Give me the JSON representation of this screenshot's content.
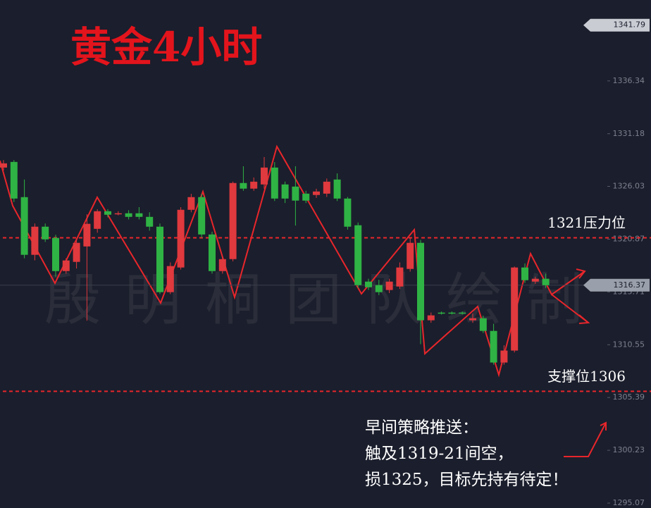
{
  "chart_data": {
    "type": "candlestick",
    "title": "黄金4小时",
    "watermark": "殷明桐团队绘制",
    "up_color": "#e0393e",
    "down_color": "#2fb344",
    "open": [
      1327.87,
      1328.42,
      1324.98,
      1319.34,
      1322.09,
      1320.99,
      1317.75,
      1318.65,
      1320.16,
      1321.88,
      1323.6,
      1323.4,
      1323.4,
      1323.4,
      1323.05,
      1322.09,
      1315.69,
      1318.1,
      1323.74,
      1324.98,
      1321.33,
      1317.75,
      1318.92,
      1326.36,
      1325.81,
      1326.22,
      1327.87,
      1326.22,
      1326.01,
      1325.32,
      1325.19,
      1325.32,
      1326.7,
      1324.84,
      1322.23,
      1316.72,
      1316.38,
      1315.9,
      1316.24,
      1317.96,
      1320.51,
      1312.94,
      1313.69,
      1313.69,
      1313.69,
      1312.94,
      1313.14,
      1311.9,
      1308.81,
      1309.98,
      1318.1,
      1316.72,
      1317.0
    ],
    "high": [
      1328.6,
      1328.6,
      1326.7,
      1322.4,
      1322.4,
      1321.3,
      1319.0,
      1320.8,
      1323.3,
      1323.8,
      1323.8,
      1323.6,
      1323.7,
      1324.0,
      1323.5,
      1322.4,
      1318.6,
      1324.0,
      1325.3,
      1325.3,
      1321.6,
      1319.2,
      1326.5,
      1328.0,
      1326.9,
      1328.9,
      1328.4,
      1326.5,
      1328.0,
      1325.6,
      1325.8,
      1326.8,
      1327.3,
      1325.0,
      1322.5,
      1317.0,
      1316.9,
      1317.0,
      1318.6,
      1321.0,
      1320.8,
      1313.7,
      1313.8,
      1313.8,
      1313.8,
      1313.6,
      1313.4,
      1312.6,
      1310.5,
      1318.2,
      1318.5,
      1317.2,
      1317.5
    ],
    "low": [
      1327.6,
      1324.5,
      1319.0,
      1318.8,
      1320.6,
      1317.2,
      1317.5,
      1318.0,
      1312.9,
      1321.5,
      1323.0,
      1323.2,
      1322.8,
      1322.8,
      1321.7,
      1315.5,
      1315.5,
      1317.9,
      1323.5,
      1321.0,
      1317.5,
      1317.5,
      1318.7,
      1325.6,
      1325.6,
      1325.8,
      1324.6,
      1324.4,
      1322.2,
      1324.4,
      1324.9,
      1325.0,
      1324.6,
      1321.8,
      1316.1,
      1315.9,
      1315.4,
      1315.6,
      1316.0,
      1317.7,
      1310.6,
      1312.7,
      1313.5,
      1313.5,
      1313.5,
      1312.7,
      1311.7,
      1308.6,
      1308.6,
      1309.8,
      1316.6,
      1316.5,
      1316.1
    ],
    "close": [
      1328.28,
      1324.84,
      1319.34,
      1322.09,
      1320.85,
      1317.75,
      1318.79,
      1320.51,
      1322.37,
      1323.6,
      1323.26,
      1323.4,
      1323.05,
      1323.05,
      1322.09,
      1315.69,
      1318.24,
      1323.74,
      1324.98,
      1321.33,
      1317.75,
      1318.92,
      1326.36,
      1325.81,
      1326.49,
      1327.87,
      1324.84,
      1324.84,
      1324.64,
      1324.64,
      1325.53,
      1326.49,
      1324.84,
      1322.09,
      1316.38,
      1316.17,
      1315.69,
      1316.72,
      1318.1,
      1320.51,
      1312.94,
      1313.42,
      1313.63,
      1313.63,
      1313.63,
      1313.14,
      1311.9,
      1308.81,
      1309.98,
      1318.1,
      1316.86,
      1317.0,
      1316.37
    ],
    "ylim": [
      1294.59,
      1344.25
    ],
    "yticks": [
      1336.34,
      1331.18,
      1326.03,
      1320.87,
      1315.71,
      1310.55,
      1305.39,
      1300.23,
      1295.07
    ],
    "price_markers": [
      1341.79,
      1316.37
    ],
    "levels": [
      {
        "value": 1321,
        "label": "1321压力位"
      },
      {
        "value": 1306,
        "label": "支撑位1306"
      }
    ],
    "note_lines": [
      "早间策略推送：",
      "触及1319-21间空，",
      "损1325，目标先持有待定！"
    ]
  }
}
